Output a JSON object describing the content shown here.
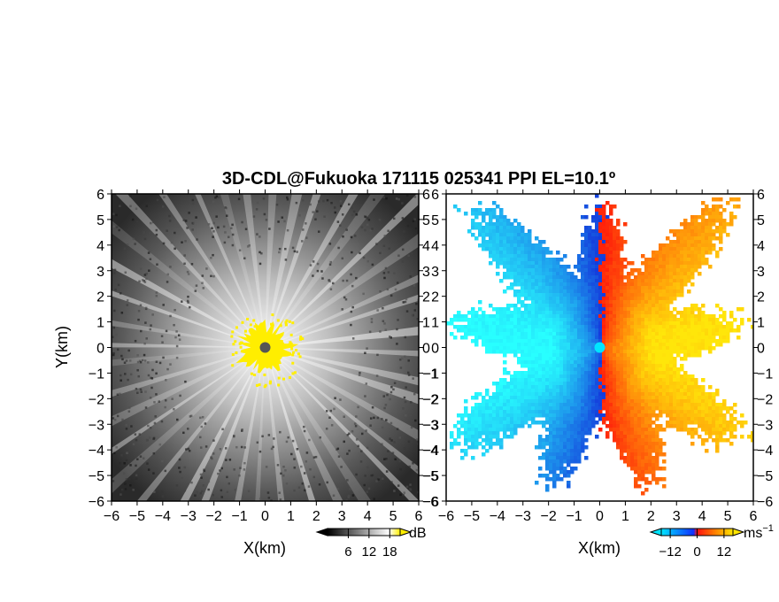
{
  "title": "3D-CDL@Fukuoka 171115 025341 PPI EL=10.1º",
  "chart_data": [
    {
      "type": "heatmap",
      "panel": "reflectivity",
      "title": "",
      "xlabel": "X(km)",
      "ylabel": "Y(km)",
      "xlim": [
        -6,
        6
      ],
      "ylim": [
        -6,
        6
      ],
      "xticks": [
        "−6",
        "−5",
        "−4",
        "−3",
        "−2",
        "−1",
        "0",
        "1",
        "2",
        "3",
        "4",
        "5",
        "6"
      ],
      "yticks": [
        "6",
        "5",
        "4",
        "3",
        "2",
        "1",
        "0",
        "−1",
        "−2",
        "−3",
        "−4",
        "−5",
        "−6"
      ],
      "colormap": "grayscale with yellow above 18 dB",
      "colorbar": {
        "unit": "dB",
        "ticks": [
          "6",
          "12",
          "18"
        ],
        "values": [
          6,
          12,
          18
        ],
        "range": [
          0,
          21
        ]
      },
      "center_marker_color": "#555555",
      "saturation_color": "#ffee00",
      "saturation_radius_km": 1.0,
      "radial_beams": 40
    },
    {
      "type": "heatmap",
      "panel": "doppler_velocity",
      "title": "",
      "xlabel": "X(km)",
      "ylabel": "",
      "xlim": [
        -6,
        6
      ],
      "ylim": [
        -6,
        6
      ],
      "xticks": [
        "−6",
        "−5",
        "−4",
        "−3",
        "−2",
        "−1",
        "0",
        "1",
        "2",
        "3",
        "4",
        "5",
        "6"
      ],
      "yticks": [
        "6",
        "5",
        "4",
        "3",
        "2",
        "1",
        "0",
        "−1",
        "−2",
        "−3",
        "−4",
        "−5",
        "−6"
      ],
      "colormap": "cyan-blue (negative) to red-orange-yellow (positive)",
      "colorbar": {
        "unit": "ms",
        "unit_sup": "−1",
        "ticks": [
          "−12",
          "0",
          "12"
        ],
        "values": [
          -12,
          0,
          12
        ],
        "range": [
          -16,
          16
        ]
      },
      "center_marker_color": "#00e5ff",
      "data_extent_km": {
        "west": 6.0,
        "east": 5.6,
        "north": 5.8,
        "south": 5.5
      }
    }
  ]
}
